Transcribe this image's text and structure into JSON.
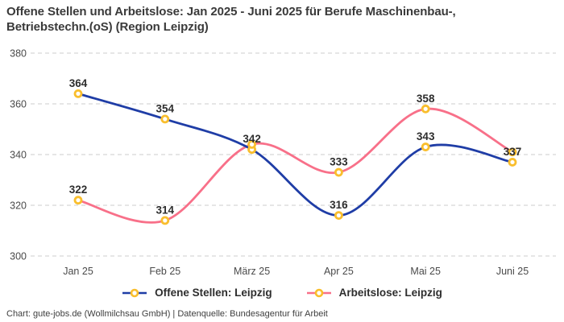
{
  "title": {
    "line1": "Offene Stellen und Arbeitslose: Jan 2025 - Juni 2025 für Berufe Maschinenbau-,",
    "line2": "Betriebstechn.(oS) (Region Leipzig)"
  },
  "footer": "Chart: gute-jobs.de (Wollmilchsau GmbH) | Datenquelle: Bundesagentur für Arbeit",
  "chart_data": {
    "type": "line",
    "categories": [
      "Jan 25",
      "Feb 25",
      "März 25",
      "Apr 25",
      "Mai 25",
      "Juni 25"
    ],
    "y_ticks": [
      380,
      360,
      340,
      320,
      300
    ],
    "ylim": [
      300,
      380
    ],
    "grid": "horizontal-dashed",
    "legend_position": "bottom",
    "smooth": true,
    "grid_color": "#cccccc",
    "axis_text_color": "#4a4a4a",
    "marker_color": "#f9be2d",
    "marker_fill": "#ffffff",
    "data_label_color": "#2d2d2d",
    "series": [
      {
        "name": "Offene Stellen: Leipzig",
        "color": "#1f3da6",
        "values": [
          364,
          354,
          342,
          316,
          343,
          337
        ],
        "labels": [
          "364",
          "354",
          "342",
          "316",
          "343",
          "337"
        ]
      },
      {
        "name": "Arbeitslose: Leipzig",
        "color": "#f87089",
        "values": [
          322,
          314,
          344,
          333,
          358,
          341
        ],
        "labels": [
          "322",
          "314",
          null,
          "333",
          "358",
          null
        ]
      }
    ]
  }
}
